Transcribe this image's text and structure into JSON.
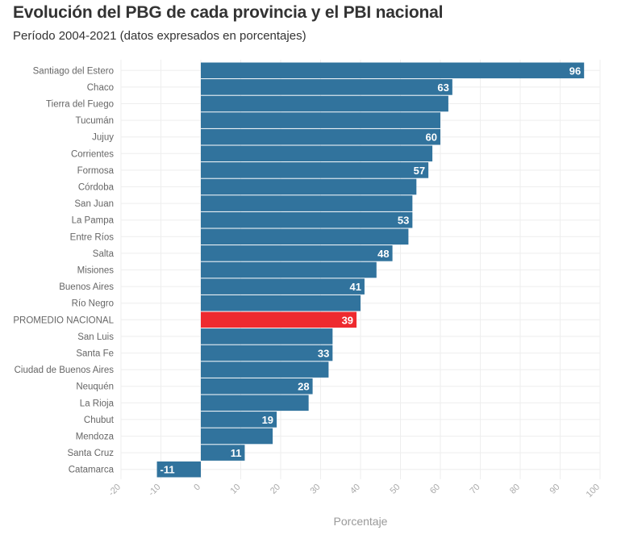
{
  "title": "Evolución del PBG de cada provincia y el PBI nacional",
  "subtitle": "Período 2004-2021 (datos expresados en porcentajes)",
  "colors": {
    "bar": "#31739d",
    "highlight": "#ee2a2f",
    "grid": "#eeeeee"
  },
  "chart_data": {
    "type": "bar",
    "orientation": "horizontal",
    "xlabel": "Porcentaje",
    "xlim": [
      -20,
      100
    ],
    "xticks": [
      "-20",
      "-10",
      "0",
      "10",
      "20",
      "30",
      "40",
      "50",
      "60",
      "70",
      "80",
      "90",
      "100"
    ],
    "grid": true,
    "highlight_category": "PROMEDIO NACIONAL",
    "categories": [
      "Santiago del Estero",
      "Chaco",
      "Tierra del Fuego",
      "Tucumán",
      "Jujuy",
      "Corrientes",
      "Formosa",
      "Córdoba",
      "San Juan",
      "La Pampa",
      "Entre Ríos",
      "Salta",
      "Misiones",
      "Buenos Aires",
      "Río Negro",
      "PROMEDIO NACIONAL",
      "San Luis",
      "Santa Fe",
      "Ciudad de Buenos Aires",
      "Neuquén",
      "La Rioja",
      "Chubut",
      "Mendoza",
      "Santa Cruz",
      "Catamarca"
    ],
    "values": [
      96,
      63,
      62,
      60,
      60,
      58,
      57,
      54,
      53,
      53,
      52,
      48,
      44,
      41,
      40,
      39,
      33,
      33,
      32,
      28,
      27,
      19,
      18,
      11,
      -11
    ],
    "value_labels": [
      "96",
      "63",
      "",
      "",
      "60",
      "",
      "57",
      "",
      "",
      "53",
      "",
      "48",
      "",
      "41",
      "",
      "39",
      "",
      "33",
      "",
      "28",
      "",
      "19",
      "",
      "11",
      "-11"
    ]
  }
}
